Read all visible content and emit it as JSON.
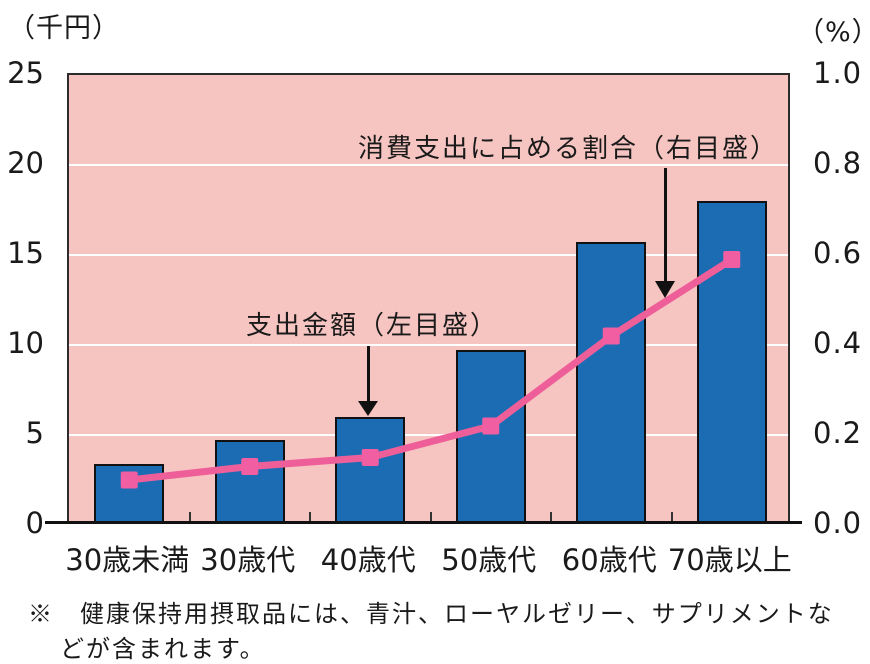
{
  "chart_data": {
    "type": "bar+line",
    "categories": [
      "30歳未満",
      "30歳代",
      "40歳代",
      "50歳代",
      "60歳代",
      "70歳以上"
    ],
    "series": [
      {
        "name": "支出金額（左目盛）",
        "type": "bar",
        "axis": "left",
        "color": "#1c6cb4",
        "values": [
          3.3,
          4.6,
          5.9,
          9.6,
          15.6,
          17.9
        ]
      },
      {
        "name": "消費支出に占める割合（右目盛）",
        "type": "line",
        "axis": "right",
        "color": "#ee5f9a",
        "marker": "square",
        "marker_color": "#f25ea2",
        "values": [
          0.1,
          0.13,
          0.15,
          0.22,
          0.42,
          0.59
        ]
      }
    ],
    "left_axis": {
      "unit_label": "（千円）",
      "min": 0,
      "max": 25,
      "ticks": [
        "25",
        "20",
        "15",
        "10",
        "5",
        "0"
      ]
    },
    "right_axis": {
      "unit_label": "（%）",
      "min": 0,
      "max": 1.0,
      "ticks": [
        "1.0",
        "0.8",
        "0.6",
        "0.4",
        "0.2",
        "0.0"
      ]
    },
    "grid": true,
    "gridline_color": "#ffffff",
    "plot_background": "#f6c5c1",
    "legend_position": "in-plot annotations with arrows",
    "annotations": [
      {
        "text": "支出金額（左目盛）",
        "arrow": "down",
        "target": "40歳代 bar top"
      },
      {
        "text": "消費支出に占める割合（右目盛）",
        "arrow": "down",
        "target": "line segment between 60歳代 and 70歳以上"
      }
    ]
  },
  "footnote": {
    "line1": "※　健康保持用摂取品には、青汁、ローヤルゼリー、サプリメントな",
    "line2": "どが含まれます。"
  }
}
